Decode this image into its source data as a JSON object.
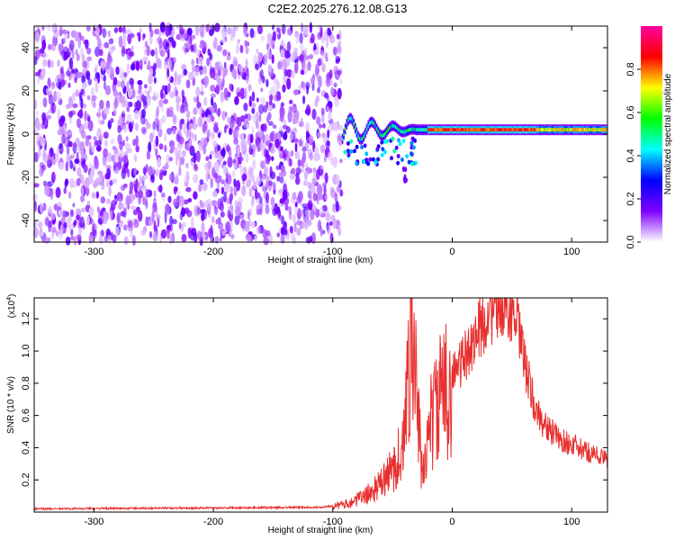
{
  "title": "C2E2.2025.276.12.08.G13",
  "chart_data": [
    {
      "type": "heatmap",
      "title": "C2E2.2025.276.12.08.G13",
      "xlabel": "Height of straight line (km)",
      "ylabel": "Frequency (Hz)",
      "xlim": [
        -350,
        130
      ],
      "ylim": [
        -50,
        50
      ],
      "xticks": [
        -300,
        -200,
        -100,
        0,
        100
      ],
      "yticks": [
        -40,
        -20,
        0,
        20,
        40
      ],
      "colorbar": {
        "label": "Normalized spectral amplitude",
        "range": [
          0,
          1
        ],
        "ticks": [
          0.0,
          0.2,
          0.4,
          0.6,
          0.8
        ],
        "colors": [
          "#ffffff",
          "#8000ff",
          "#0000ff",
          "#00ffff",
          "#00ff00",
          "#ffff00",
          "#ff0000",
          "#ff00a0"
        ]
      },
      "features": {
        "noise_region_x": [
          -350,
          -92
        ],
        "signal_band_frequency_hz": 2,
        "signal_start_x": -92,
        "branch_near_x": -40,
        "branch_min_frequency_hz": -22
      }
    },
    {
      "type": "line",
      "xlabel": "Height of straight line (km)",
      "ylabel": "SNR (10 * v/v)",
      "yscale_label": "(x10",
      "yscale_exp": "4",
      "xlim": [
        -350,
        130
      ],
      "ylim": [
        0,
        1.33
      ],
      "xticks": [
        -300,
        -200,
        -100,
        0,
        100
      ],
      "yticks": [
        0.2,
        0.4,
        0.6,
        0.8,
        1.0,
        1.2
      ],
      "color": "#e83030",
      "envelope": {
        "x": [
          -350,
          -110,
          -90,
          -80,
          -70,
          -60,
          -50,
          -40,
          -35,
          -30,
          -25,
          -20,
          -10,
          0,
          10,
          20,
          30,
          40,
          45,
          50,
          55,
          60,
          65,
          70,
          80,
          90,
          100,
          110,
          120,
          130
        ],
        "y": [
          0.02,
          0.03,
          0.05,
          0.08,
          0.12,
          0.18,
          0.28,
          0.45,
          1.2,
          0.8,
          0.2,
          0.55,
          0.75,
          0.85,
          0.95,
          1.1,
          1.22,
          1.3,
          1.32,
          1.25,
          1.15,
          0.95,
          0.78,
          0.62,
          0.52,
          0.45,
          0.42,
          0.38,
          0.36,
          0.32
        ]
      }
    }
  ]
}
